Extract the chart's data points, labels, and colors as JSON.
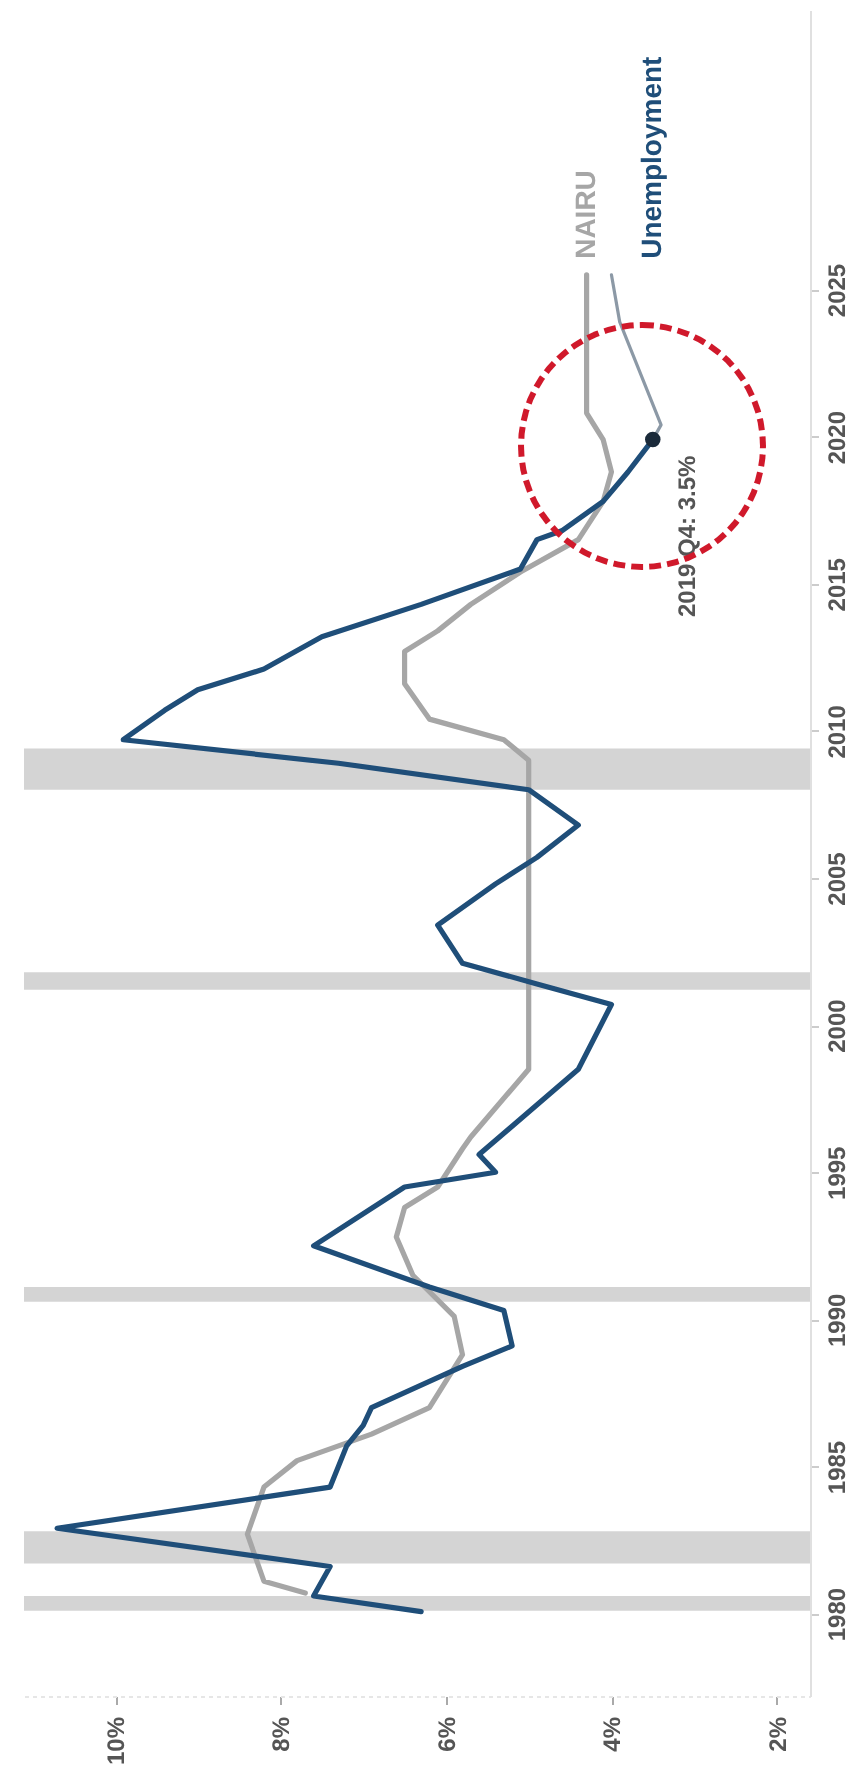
{
  "chart_data": {
    "type": "line",
    "xlim": [
      11.1,
      1.6
    ],
    "xticks": [
      {
        "value": 10,
        "label": "10%"
      },
      {
        "value": 8,
        "label": "8%"
      },
      {
        "value": 6,
        "label": "6%"
      },
      {
        "value": 4,
        "label": "4%"
      },
      {
        "value": 2,
        "label": "2%"
      }
    ],
    "ylim": [
      1977.2,
      2034.5
    ],
    "yticks": [
      1980,
      1985,
      1990,
      1995,
      2000,
      2005,
      2010,
      2015,
      2020,
      2025
    ],
    "grid": false,
    "series": [
      {
        "name": "NAIRU",
        "color": "#a6a6a6",
        "values": [
          1980.7,
          1981.1,
          1982.7,
          1984.3,
          1985.2,
          1986.1,
          1987.0,
          1988.8,
          1990.1,
          1991.5,
          1992.8,
          1993.8,
          1994.5,
          1995.8,
          1996.2,
          1998.5,
          1999.6,
          2009.0,
          2009.7,
          2010.4,
          2011.6,
          2012.7,
          2013.4,
          2014.3,
          2015.4,
          2016.5,
          2017.8,
          2018.8,
          2019.9,
          2020.8,
          2025.5
        ],
        "x": [
          7.7,
          8.2,
          8.4,
          8.2,
          7.8,
          6.9,
          6.2,
          5.8,
          5.9,
          6.4,
          6.6,
          6.5,
          6.1,
          5.8,
          5.7,
          5.0,
          5.0,
          5.0,
          5.3,
          6.2,
          6.5,
          6.5,
          6.1,
          5.7,
          5.1,
          4.4,
          4.1,
          4.0,
          4.1,
          4.3,
          4.3
        ]
      },
      {
        "color": "#8c99a6",
        "values": [
          2019.9,
          2020.4,
          2023.9,
          2025.5
        ],
        "x": [
          3.5,
          3.4,
          3.9,
          4.0
        ]
      },
      {
        "name": "Unemployment",
        "color": "#1f4e79",
        "values": [
          1980.07,
          1980.6,
          1981.6,
          1982.9,
          1984.0,
          1984.3,
          1985.7,
          1986.4,
          1987.0,
          1988.4,
          1989.1,
          1990.3,
          1991.1,
          1992.5,
          1994.5,
          1995.0,
          1995.6,
          1998.5,
          2000.7,
          2001.4,
          2002.1,
          2003.4,
          2004.8,
          2005.7,
          2006.8,
          2008.0,
          2008.9,
          2009.7,
          2010.7,
          2011.4,
          2012.1,
          2013.2,
          2014.3,
          2015.5,
          2016.5,
          2016.8,
          2017.8,
          2018.8,
          2019.9
        ],
        "x": [
          6.3,
          7.6,
          7.4,
          10.7,
          8.1,
          7.4,
          7.2,
          7.0,
          6.9,
          5.8,
          5.2,
          5.3,
          6.2,
          7.6,
          6.5,
          5.4,
          5.6,
          4.4,
          4.0,
          4.9,
          5.8,
          6.1,
          5.4,
          4.9,
          4.4,
          5.0,
          7.3,
          9.9,
          9.4,
          9.0,
          8.2,
          7.5,
          6.3,
          5.1,
          4.9,
          4.6,
          4.1,
          3.8,
          3.5
        ]
      }
    ],
    "bands": [
      {
        "axis": "y",
        "from": 1980.1,
        "to": 1980.6,
        "color": "#d4d4d4"
      },
      {
        "axis": "y",
        "from": 1981.7,
        "to": 1982.8,
        "color": "#d4d4d4"
      },
      {
        "axis": "y",
        "from": 1990.6,
        "to": 1991.1,
        "color": "#d4d4d4"
      },
      {
        "axis": "y",
        "from": 2001.2,
        "to": 2001.8,
        "color": "#d4d4d4"
      },
      {
        "axis": "y",
        "from": 2008.0,
        "to": 2009.4,
        "color": "#d4d4d4"
      }
    ],
    "annotations": [
      {
        "text": "2019 Q4: 3.5%",
        "x": 3.5,
        "y": 2019.9
      }
    ]
  }
}
